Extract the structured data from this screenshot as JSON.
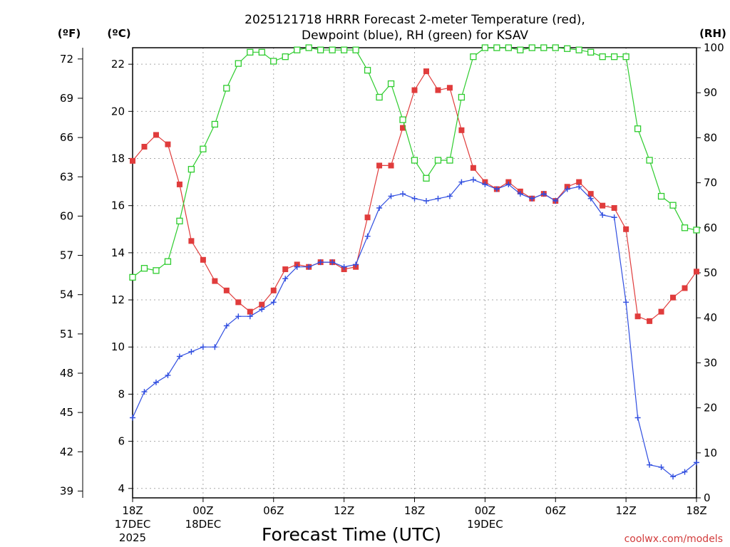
{
  "chart_data": {
    "type": "line",
    "title_line1": "2025121718 HRRR Forecast 2-meter Temperature (red),",
    "title_line2": "Dewpoint (blue), RH (green) for KSAV",
    "xlabel": "Forecast Time (UTC)",
    "credit": "coolwx.com/models",
    "units": {
      "f": "(ºF)",
      "c": "(ºC)",
      "rh": "(RH)"
    },
    "x_range": [
      0,
      48
    ],
    "x_ticks": [
      {
        "x": 0,
        "lines": [
          "18Z",
          "17DEC",
          "2025"
        ]
      },
      {
        "x": 6,
        "lines": [
          "00Z",
          "18DEC"
        ]
      },
      {
        "x": 12,
        "lines": [
          "06Z"
        ]
      },
      {
        "x": 18,
        "lines": [
          "12Z"
        ]
      },
      {
        "x": 24,
        "lines": [
          "18Z"
        ]
      },
      {
        "x": 30,
        "lines": [
          "00Z",
          "19DEC"
        ]
      },
      {
        "x": 36,
        "lines": [
          "06Z"
        ]
      },
      {
        "x": 42,
        "lines": [
          "12Z"
        ]
      },
      {
        "x": 48,
        "lines": [
          "18Z"
        ]
      }
    ],
    "y_c_range": [
      3.6,
      22.7
    ],
    "y_c_ticks": [
      4,
      6,
      8,
      10,
      12,
      14,
      16,
      18,
      20,
      22
    ],
    "y_f_ticks": [
      39,
      42,
      45,
      48,
      51,
      54,
      57,
      60,
      63,
      66,
      69,
      72
    ],
    "y_rh_range": [
      0,
      100
    ],
    "y_rh_ticks": [
      0,
      10,
      20,
      30,
      40,
      50,
      60,
      70,
      80,
      90,
      100
    ],
    "grid": true,
    "series": [
      {
        "name": "Temperature",
        "color": "#e03c3c",
        "marker": "filled-square",
        "axis": "c",
        "values": [
          17.9,
          18.5,
          19.0,
          18.6,
          16.9,
          14.5,
          13.7,
          12.8,
          12.4,
          11.9,
          11.5,
          11.8,
          12.4,
          13.3,
          13.5,
          13.4,
          13.6,
          13.6,
          13.3,
          13.4,
          15.5,
          17.7,
          17.7,
          19.3,
          20.9,
          21.7,
          20.9,
          21.0,
          19.2,
          17.6,
          17.0,
          16.7,
          17.0,
          16.6,
          16.3,
          16.5,
          16.2,
          16.8,
          17.0,
          16.5,
          16.0,
          15.9,
          15.0,
          11.3,
          11.1,
          11.5,
          12.1,
          12.5,
          13.2
        ]
      },
      {
        "name": "Dewpoint",
        "color": "#2f4de0",
        "marker": "plus",
        "axis": "c",
        "values": [
          7.0,
          8.1,
          8.5,
          8.8,
          9.6,
          9.8,
          10.0,
          10.0,
          10.9,
          11.3,
          11.3,
          11.6,
          11.9,
          12.9,
          13.4,
          13.4,
          13.6,
          13.6,
          13.4,
          13.5,
          14.7,
          15.9,
          16.4,
          16.5,
          16.3,
          16.2,
          16.3,
          16.4,
          17.0,
          17.1,
          16.9,
          16.7,
          16.9,
          16.5,
          16.3,
          16.5,
          16.2,
          16.7,
          16.8,
          16.3,
          15.6,
          15.5,
          11.9,
          7.0,
          5.0,
          4.9,
          4.5,
          4.7,
          5.1
        ]
      },
      {
        "name": "RH",
        "color": "#2ecc2e",
        "marker": "open-square",
        "axis": "rh",
        "values": [
          49,
          51,
          50.5,
          52.5,
          61.5,
          73,
          77.5,
          83,
          91,
          96.5,
          99,
          99,
          97,
          98,
          99.5,
          100,
          99.5,
          99.5,
          99.5,
          99.5,
          95,
          89,
          92,
          84,
          75,
          71,
          75,
          75,
          89,
          98,
          100,
          100,
          100,
          99.5,
          100,
          100,
          100,
          99.8,
          99.5,
          99,
          98,
          98,
          98,
          82,
          75,
          67,
          65,
          60,
          59.5
        ]
      }
    ]
  }
}
